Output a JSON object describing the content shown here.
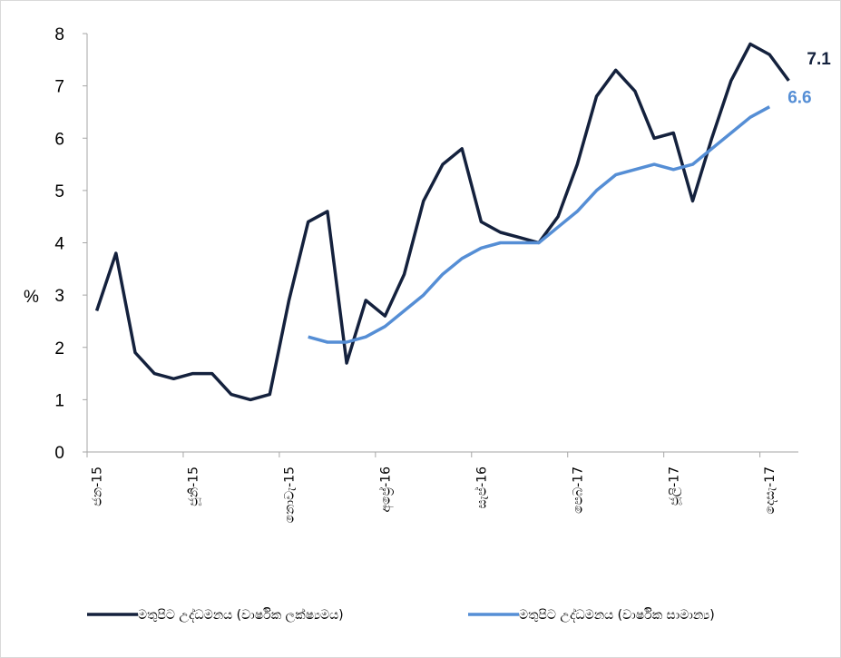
{
  "chart_data": {
    "type": "line",
    "ylabel": "%",
    "ylim": [
      0,
      8
    ],
    "yticks": [
      "0",
      "1",
      "2",
      "3",
      "4",
      "5",
      "6",
      "7",
      "8"
    ],
    "x_tick_labels": [
      "ජන-15",
      "ජූනි-15",
      "නොවැ-15",
      "අප්‍රේ-16",
      "සැප්-16",
      "පෙබ-17",
      "ජූලි-17",
      "දෙසැ-17"
    ],
    "grid": false,
    "legend_position": "bottom",
    "series": [
      {
        "name": "මතුපිට උද්ධමනය (වාර්ෂික ලක්ෂ්‍යමය)",
        "color": "#14213d",
        "start_index": 0,
        "values": [
          2.7,
          3.8,
          1.9,
          1.5,
          1.4,
          1.5,
          1.5,
          1.1,
          1.0,
          1.1,
          2.9,
          4.4,
          4.6,
          1.7,
          2.9,
          2.6,
          3.4,
          4.8,
          5.5,
          5.8,
          4.4,
          4.2,
          4.1,
          4.0,
          4.5,
          5.5,
          6.8,
          7.3,
          6.9,
          6.0,
          6.1,
          4.8,
          6.0,
          7.1,
          7.8,
          7.6,
          7.1
        ],
        "end_label": "7.1"
      },
      {
        "name": "මතුපිට උද්ධමනය (වාර්ෂික සාමාන්‍ය)",
        "color": "#558ed5",
        "start_index": 11,
        "values": [
          2.2,
          2.1,
          2.1,
          2.2,
          2.4,
          2.7,
          3.0,
          3.4,
          3.7,
          3.9,
          4.0,
          4.0,
          4.0,
          4.3,
          4.6,
          5.0,
          5.3,
          5.4,
          5.5,
          5.4,
          5.5,
          5.8,
          6.1,
          6.4,
          6.6
        ],
        "end_label": "6.6"
      }
    ]
  }
}
